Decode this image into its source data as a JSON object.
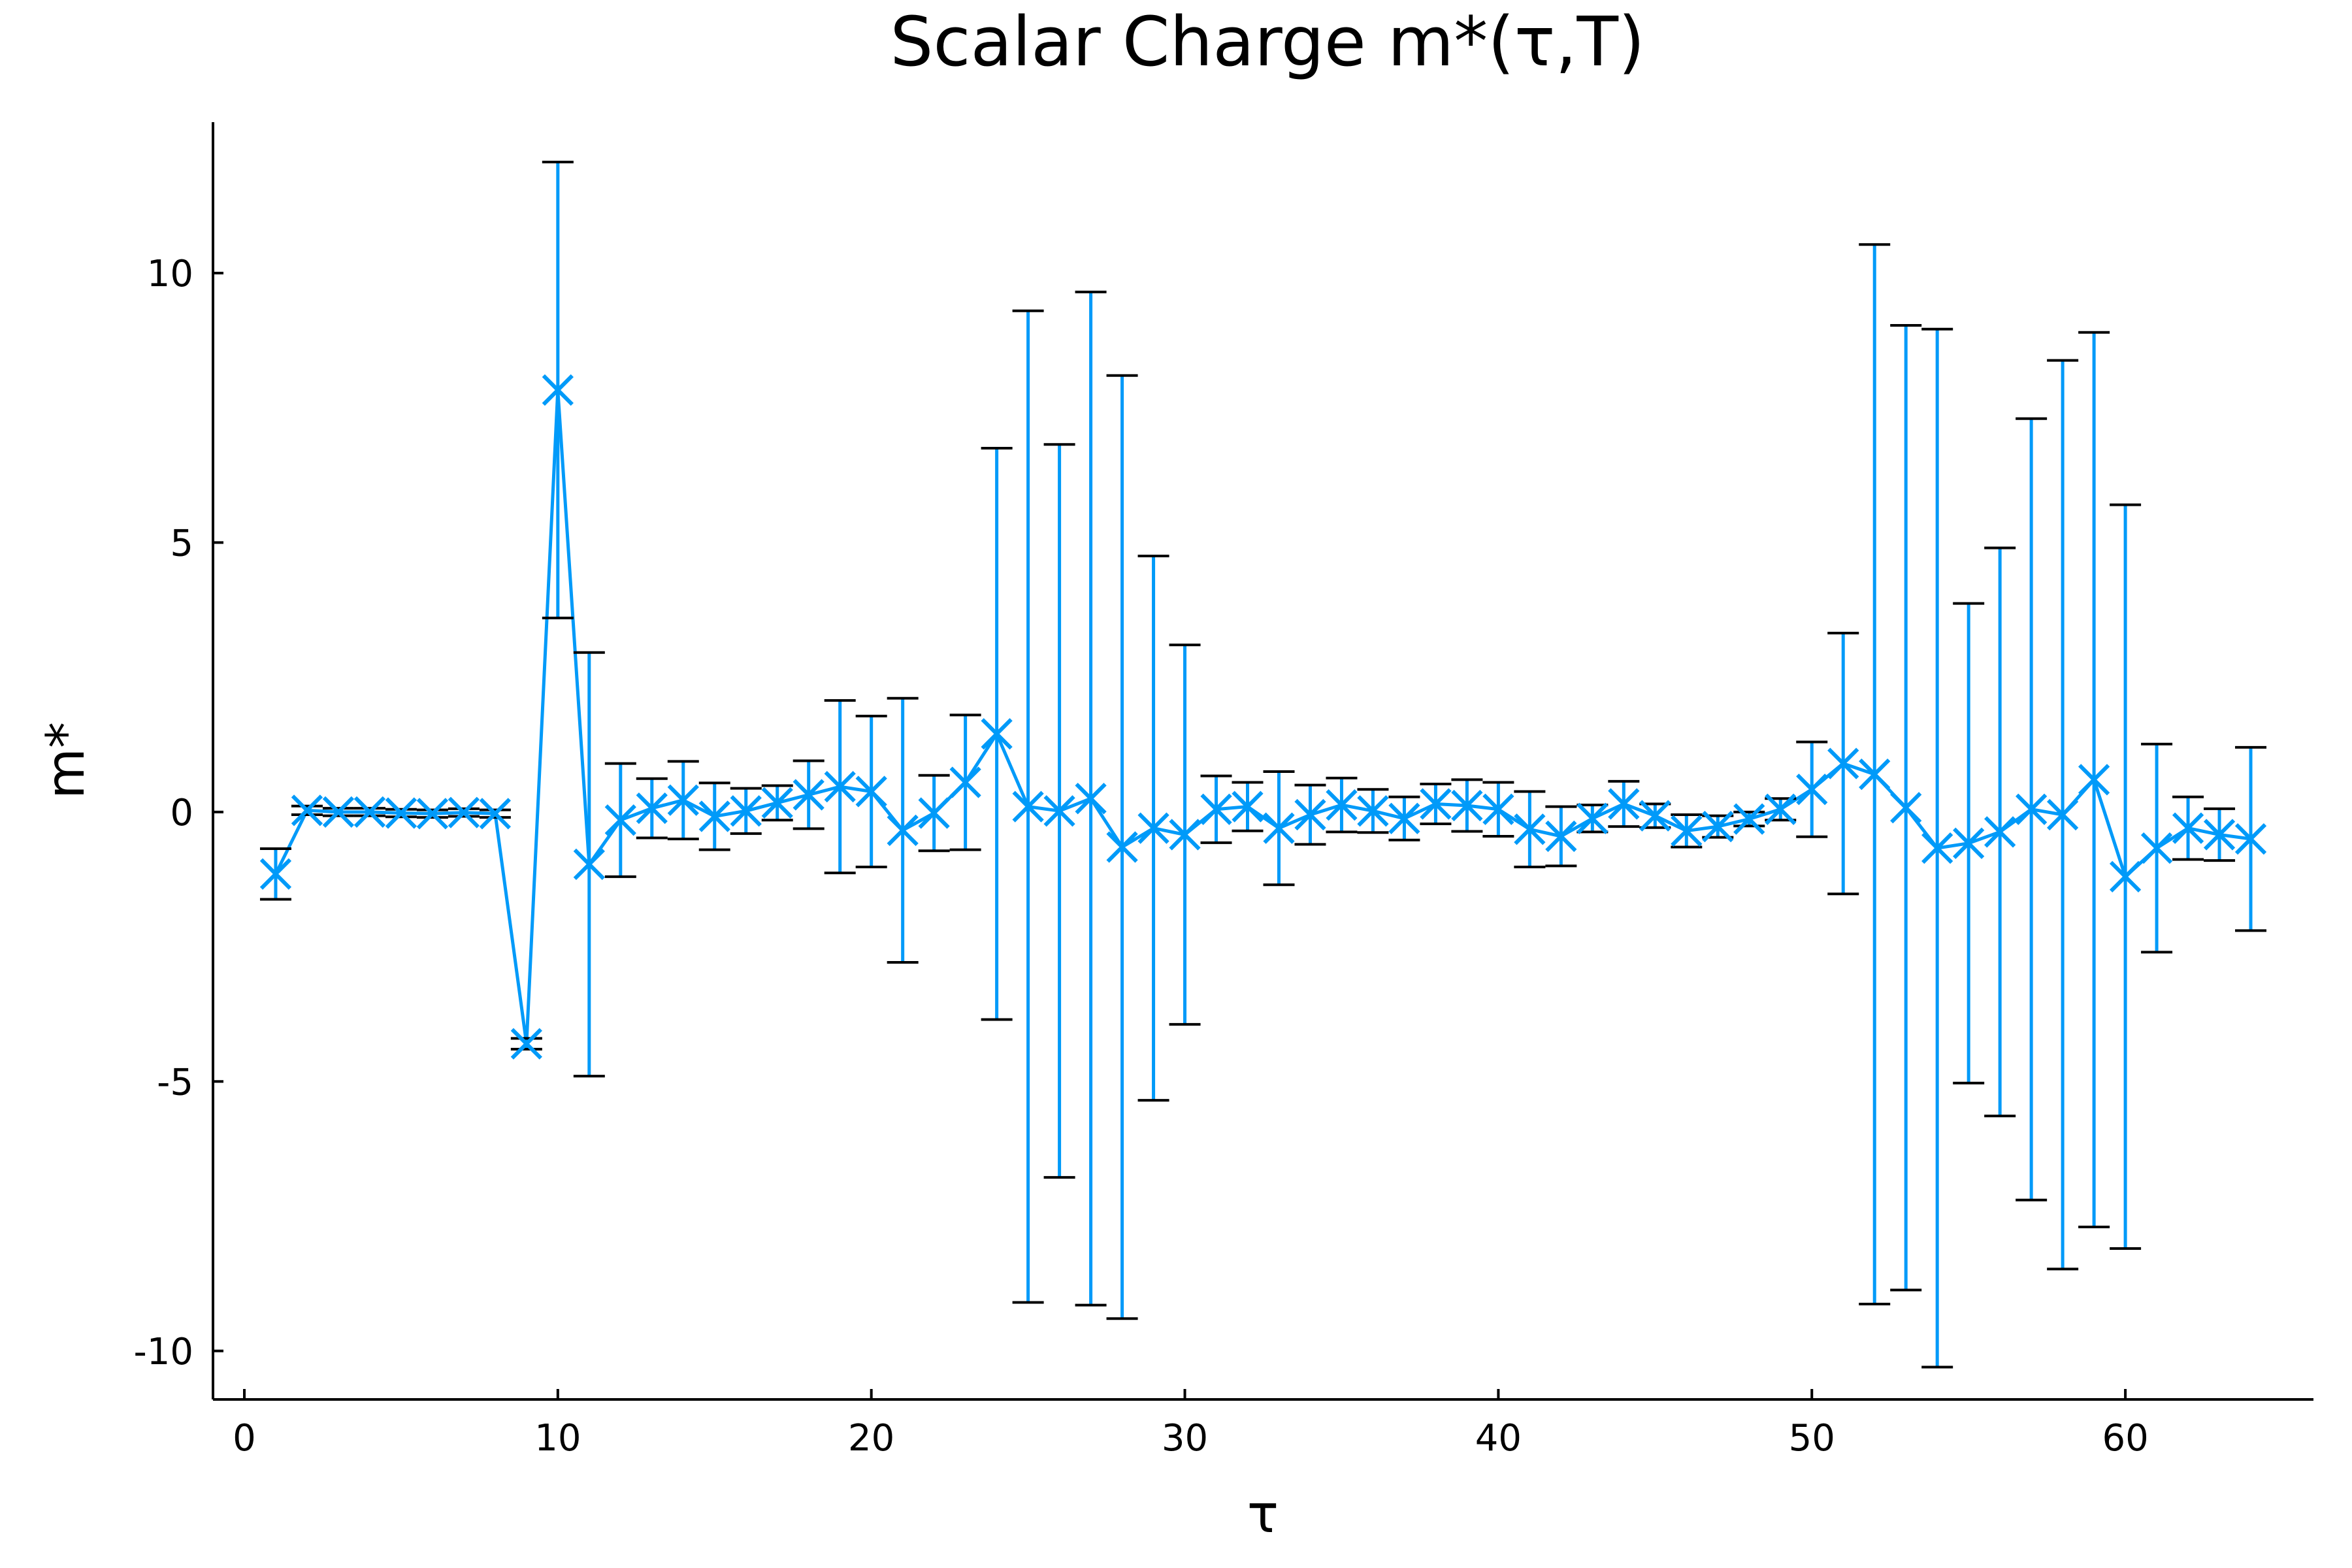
{
  "chart_data": {
    "type": "scatter",
    "title": "Scalar Charge m*(τ,T)",
    "xlabel": "τ",
    "ylabel": "m*",
    "xlim": [
      -1,
      66
    ],
    "ylim": [
      -10.9,
      12.8
    ],
    "x_ticks": [
      0,
      10,
      20,
      30,
      40,
      50,
      60
    ],
    "y_ticks": [
      -10,
      -5,
      0,
      5,
      10
    ],
    "grid": false,
    "legend": "none",
    "colors": {
      "series": "#009af9",
      "errorbar_cap": "#000000",
      "axis": "#000000"
    },
    "series": [
      {
        "marker": "x",
        "line": true,
        "errorbars": true,
        "points": [
          {
            "x": 1,
            "y": -1.15,
            "err": 0.47
          },
          {
            "x": 2,
            "y": 0.03,
            "err": 0.08
          },
          {
            "x": 3,
            "y": 0.0,
            "err": 0.07
          },
          {
            "x": 4,
            "y": 0.0,
            "err": 0.07
          },
          {
            "x": 5,
            "y": -0.02,
            "err": 0.07
          },
          {
            "x": 6,
            "y": -0.03,
            "err": 0.07
          },
          {
            "x": 7,
            "y": -0.01,
            "err": 0.07
          },
          {
            "x": 8,
            "y": -0.03,
            "err": 0.07
          },
          {
            "x": 9,
            "y": -4.3,
            "err": 0.1
          },
          {
            "x": 10,
            "y": 7.83,
            "err": 4.23
          },
          {
            "x": 11,
            "y": -0.97,
            "err": 3.93
          },
          {
            "x": 12,
            "y": -0.15,
            "err": 1.05
          },
          {
            "x": 13,
            "y": 0.07,
            "err": 0.55
          },
          {
            "x": 14,
            "y": 0.22,
            "err": 0.72
          },
          {
            "x": 15,
            "y": -0.08,
            "err": 0.62
          },
          {
            "x": 16,
            "y": 0.02,
            "err": 0.42
          },
          {
            "x": 17,
            "y": 0.17,
            "err": 0.32
          },
          {
            "x": 18,
            "y": 0.32,
            "err": 0.63
          },
          {
            "x": 19,
            "y": 0.47,
            "err": 1.6
          },
          {
            "x": 20,
            "y": 0.38,
            "err": 1.4
          },
          {
            "x": 21,
            "y": -0.34,
            "err": 2.45
          },
          {
            "x": 22,
            "y": -0.02,
            "err": 0.7
          },
          {
            "x": 23,
            "y": 0.55,
            "err": 1.25
          },
          {
            "x": 24,
            "y": 1.45,
            "err": 5.3
          },
          {
            "x": 25,
            "y": 0.1,
            "err": 9.2
          },
          {
            "x": 26,
            "y": 0.02,
            "err": 6.8
          },
          {
            "x": 27,
            "y": 0.25,
            "err": 9.4
          },
          {
            "x": 28,
            "y": -0.65,
            "err": 8.75
          },
          {
            "x": 29,
            "y": -0.3,
            "err": 5.05
          },
          {
            "x": 30,
            "y": -0.42,
            "err": 3.52
          },
          {
            "x": 31,
            "y": 0.05,
            "err": 0.62
          },
          {
            "x": 32,
            "y": 0.1,
            "err": 0.45
          },
          {
            "x": 33,
            "y": -0.3,
            "err": 1.05
          },
          {
            "x": 34,
            "y": -0.05,
            "err": 0.55
          },
          {
            "x": 35,
            "y": 0.13,
            "err": 0.5
          },
          {
            "x": 36,
            "y": 0.02,
            "err": 0.4
          },
          {
            "x": 37,
            "y": -0.12,
            "err": 0.4
          },
          {
            "x": 38,
            "y": 0.15,
            "err": 0.37
          },
          {
            "x": 39,
            "y": 0.12,
            "err": 0.48
          },
          {
            "x": 40,
            "y": 0.05,
            "err": 0.5
          },
          {
            "x": 41,
            "y": -0.32,
            "err": 0.7
          },
          {
            "x": 42,
            "y": -0.45,
            "err": 0.55
          },
          {
            "x": 43,
            "y": -0.12,
            "err": 0.25
          },
          {
            "x": 44,
            "y": 0.15,
            "err": 0.42
          },
          {
            "x": 45,
            "y": -0.07,
            "err": 0.22
          },
          {
            "x": 46,
            "y": -0.35,
            "err": 0.3
          },
          {
            "x": 47,
            "y": -0.27,
            "err": 0.2
          },
          {
            "x": 48,
            "y": -0.13,
            "err": 0.13
          },
          {
            "x": 49,
            "y": 0.05,
            "err": 0.2
          },
          {
            "x": 50,
            "y": 0.42,
            "err": 0.88
          },
          {
            "x": 51,
            "y": 0.9,
            "err": 2.42
          },
          {
            "x": 52,
            "y": 0.7,
            "err": 9.83
          },
          {
            "x": 53,
            "y": 0.08,
            "err": 8.95
          },
          {
            "x": 54,
            "y": -0.67,
            "err": 9.63
          },
          {
            "x": 55,
            "y": -0.58,
            "err": 4.45
          },
          {
            "x": 56,
            "y": -0.37,
            "err": 5.27
          },
          {
            "x": 57,
            "y": 0.05,
            "err": 7.25
          },
          {
            "x": 58,
            "y": -0.05,
            "err": 8.43
          },
          {
            "x": 59,
            "y": 0.6,
            "err": 8.3
          },
          {
            "x": 60,
            "y": -1.2,
            "err": 6.9
          },
          {
            "x": 61,
            "y": -0.67,
            "err": 1.93
          },
          {
            "x": 62,
            "y": -0.3,
            "err": 0.58
          },
          {
            "x": 63,
            "y": -0.42,
            "err": 0.48
          },
          {
            "x": 64,
            "y": -0.5,
            "err": 1.7
          }
        ]
      }
    ]
  }
}
